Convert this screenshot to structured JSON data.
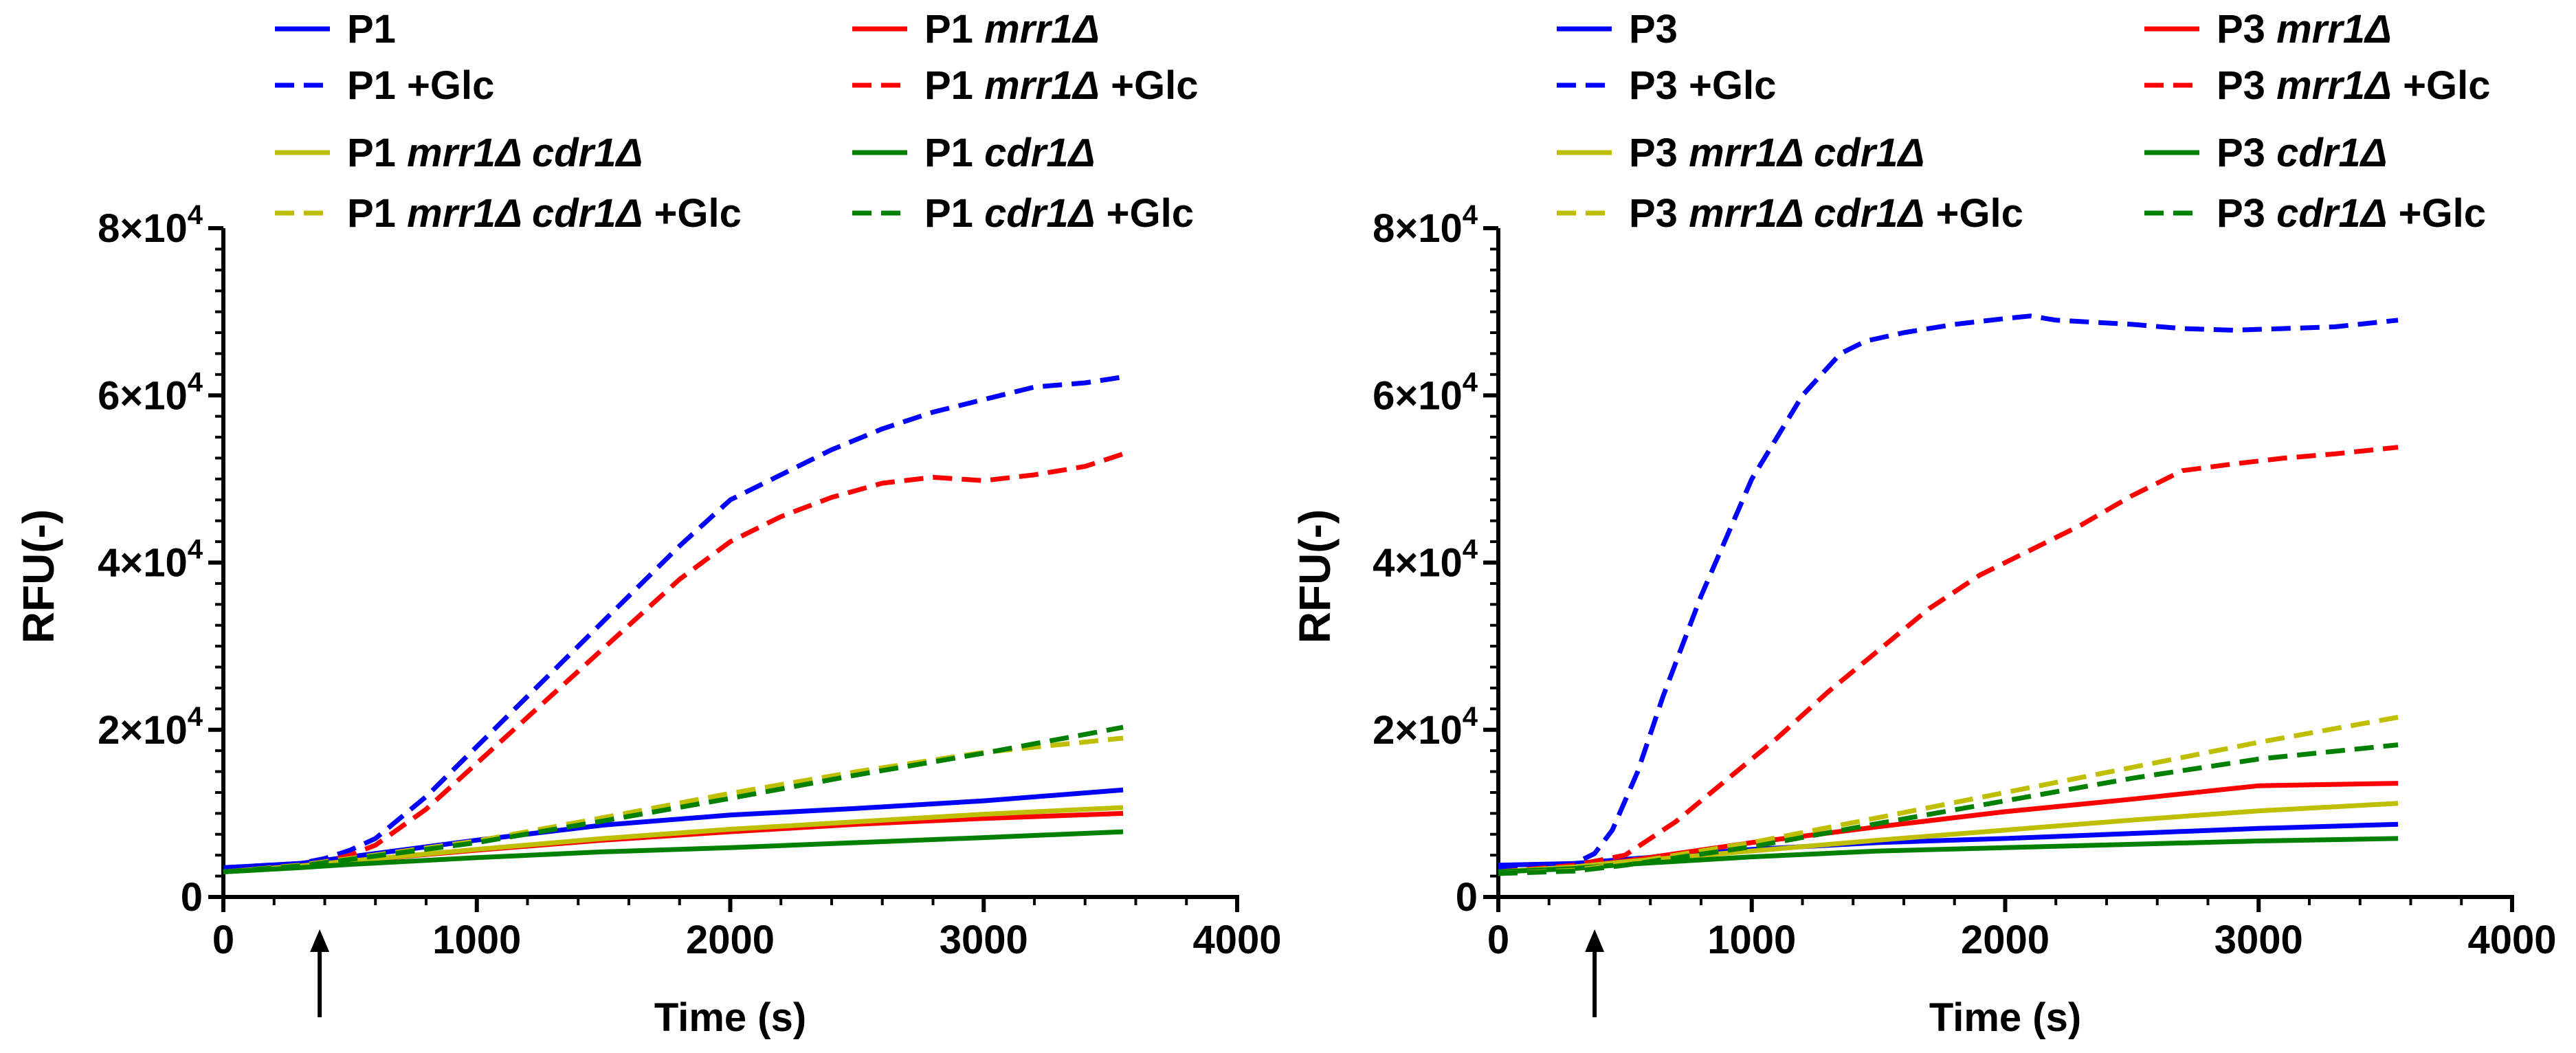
{
  "chart_data": [
    {
      "type": "line",
      "xlabel": "Time (s)",
      "ylabel": "RFU(-)",
      "xlim": [
        0,
        4000
      ],
      "ylim": [
        0,
        80000
      ],
      "x_ticks": [
        {
          "value": 0,
          "label": "0"
        },
        {
          "value": 1000,
          "label": "1000"
        },
        {
          "value": 2000,
          "label": "2000"
        },
        {
          "value": 3000,
          "label": "3000"
        },
        {
          "value": 4000,
          "label": "4000"
        }
      ],
      "y_ticks": [
        {
          "value": 0,
          "label": "0",
          "exp": ""
        },
        {
          "value": 20000,
          "label": "2×10",
          "exp": "4"
        },
        {
          "value": 40000,
          "label": "4×10",
          "exp": "4"
        },
        {
          "value": 60000,
          "label": "6×10",
          "exp": "4"
        },
        {
          "value": 80000,
          "label": "8×10",
          "exp": "4"
        }
      ],
      "arrow_at_x": 380,
      "legend_position": "top",
      "series": [
        {
          "name": "P1",
          "strain": "",
          "suffix": "",
          "color": "#0000ff",
          "dashed": false,
          "x": [
            0,
            300,
            500,
            1000,
            1500,
            2000,
            2500,
            3000,
            3550
          ],
          "y": [
            3500,
            4000,
            4800,
            6800,
            8600,
            9800,
            10600,
            11500,
            12800
          ]
        },
        {
          "name": "P1",
          "strain": "mrr1Δ",
          "suffix": "",
          "color": "#ff0000",
          "dashed": false,
          "x": [
            0,
            300,
            500,
            1000,
            1500,
            2000,
            2500,
            3000,
            3550
          ],
          "y": [
            3000,
            3700,
            4300,
            5600,
            6800,
            7800,
            8700,
            9400,
            10000
          ]
        },
        {
          "name": "P1 +Glc",
          "strain": "",
          "suffix": "",
          "color": "#0000ff",
          "dashed": true,
          "x": [
            0,
            300,
            400,
            500,
            600,
            800,
            1000,
            1200,
            1400,
            1600,
            1800,
            2000,
            2200,
            2400,
            2600,
            2800,
            3000,
            3200,
            3400,
            3550
          ],
          "y": [
            3500,
            4000,
            4600,
            5600,
            7000,
            12000,
            18000,
            24000,
            30000,
            36000,
            42000,
            47500,
            50500,
            53500,
            56000,
            58000,
            59500,
            61000,
            61500,
            62200
          ]
        },
        {
          "name": "P1",
          "strain": "mrr1Δ",
          "suffix": "+Glc",
          "color": "#ff0000",
          "dashed": true,
          "x": [
            0,
            300,
            400,
            500,
            600,
            800,
            1000,
            1200,
            1400,
            1600,
            1800,
            2000,
            2200,
            2400,
            2600,
            2800,
            3000,
            3200,
            3400,
            3550
          ],
          "y": [
            3000,
            3800,
            4200,
            5000,
            6200,
            10500,
            16000,
            21500,
            27000,
            32500,
            38000,
            42500,
            45500,
            47800,
            49500,
            50200,
            49800,
            50500,
            51500,
            53000
          ]
        },
        {
          "name": "P1",
          "strain": "mrr1Δ cdr1Δ",
          "suffix": "",
          "color": "#bfbf00",
          "dashed": false,
          "x": [
            0,
            300,
            500,
            1000,
            1500,
            2000,
            2500,
            3000,
            3550
          ],
          "y": [
            3000,
            3700,
            4300,
            5700,
            7000,
            8100,
            9000,
            9900,
            10700
          ]
        },
        {
          "name": "P1",
          "strain": "cdr1Δ",
          "suffix": "",
          "color": "#008000",
          "dashed": false,
          "x": [
            0,
            300,
            500,
            1000,
            1500,
            2000,
            2500,
            3000,
            3550
          ],
          "y": [
            3000,
            3500,
            3900,
            4700,
            5400,
            5900,
            6500,
            7100,
            7800
          ]
        },
        {
          "name": "P1",
          "strain": "mrr1Δ cdr1Δ",
          "suffix": "+Glc",
          "color": "#bfbf00",
          "dashed": true,
          "x": [
            0,
            300,
            500,
            1000,
            1500,
            2000,
            2500,
            3000,
            3550
          ],
          "y": [
            3000,
            3800,
            4600,
            6700,
            9500,
            12400,
            15000,
            17300,
            19000
          ]
        },
        {
          "name": "P1",
          "strain": "cdr1Δ",
          "suffix": "+Glc",
          "color": "#008000",
          "dashed": true,
          "x": [
            0,
            300,
            500,
            1000,
            1500,
            2000,
            2500,
            3000,
            3550
          ],
          "y": [
            3000,
            3700,
            4500,
            6500,
            9100,
            11800,
            14600,
            17200,
            20300
          ]
        }
      ]
    },
    {
      "type": "line",
      "xlabel": "Time (s)",
      "ylabel": "RFU(-)",
      "xlim": [
        0,
        4000
      ],
      "ylim": [
        0,
        80000
      ],
      "x_ticks": [
        {
          "value": 0,
          "label": "0"
        },
        {
          "value": 1000,
          "label": "1000"
        },
        {
          "value": 2000,
          "label": "2000"
        },
        {
          "value": 3000,
          "label": "3000"
        },
        {
          "value": 4000,
          "label": "4000"
        }
      ],
      "y_ticks": [
        {
          "value": 0,
          "label": "0",
          "exp": ""
        },
        {
          "value": 20000,
          "label": "2×10",
          "exp": "4"
        },
        {
          "value": 40000,
          "label": "4×10",
          "exp": "4"
        },
        {
          "value": 60000,
          "label": "6×10",
          "exp": "4"
        },
        {
          "value": 80000,
          "label": "8×10",
          "exp": "4"
        }
      ],
      "arrow_at_x": 380,
      "legend_position": "top",
      "series": [
        {
          "name": "P3",
          "strain": "",
          "suffix": "",
          "color": "#0000ff",
          "dashed": false,
          "x": [
            0,
            300,
            500,
            1000,
            1500,
            2000,
            2500,
            3000,
            3550
          ],
          "y": [
            3800,
            4000,
            4500,
            5700,
            6500,
            7000,
            7600,
            8200,
            8700
          ]
        },
        {
          "name": "P3",
          "strain": "mrr1Δ",
          "suffix": "",
          "color": "#ff0000",
          "dashed": false,
          "x": [
            0,
            300,
            500,
            1000,
            1500,
            2000,
            2500,
            3000,
            3550
          ],
          "y": [
            3000,
            3600,
            4300,
            6500,
            8400,
            10200,
            11700,
            13300,
            13600
          ]
        },
        {
          "name": "P3 +Glc",
          "strain": "",
          "suffix": "",
          "color": "#0000ff",
          "dashed": true,
          "x": [
            0,
            300,
            380,
            450,
            550,
            650,
            800,
            1000,
            1200,
            1350,
            1450,
            1600,
            1800,
            2000,
            2100,
            2200,
            2500,
            2700,
            2900,
            3100,
            3300,
            3550
          ],
          "y": [
            3500,
            4000,
            5200,
            8000,
            15000,
            24000,
            36000,
            50000,
            60000,
            65000,
            66500,
            67500,
            68500,
            69200,
            69500,
            69000,
            68500,
            68000,
            67800,
            68000,
            68200,
            69000
          ]
        },
        {
          "name": "P3",
          "strain": "mrr1Δ",
          "suffix": "+Glc",
          "color": "#ff0000",
          "dashed": true,
          "x": [
            0,
            300,
            500,
            700,
            900,
            1100,
            1300,
            1500,
            1700,
            1900,
            2100,
            2300,
            2500,
            2700,
            2900,
            3100,
            3300,
            3550
          ],
          "y": [
            3000,
            3800,
            5000,
            9000,
            14000,
            19000,
            24500,
            29500,
            34500,
            38500,
            41500,
            44500,
            48000,
            51000,
            51800,
            52500,
            53000,
            53800
          ]
        },
        {
          "name": "P3",
          "strain": "mrr1Δ cdr1Δ",
          "suffix": "",
          "color": "#bfbf00",
          "dashed": false,
          "x": [
            0,
            300,
            500,
            1000,
            1500,
            2000,
            2500,
            3000,
            3550
          ],
          "y": [
            3000,
            3600,
            4200,
            5500,
            6800,
            8000,
            9200,
            10300,
            11200
          ]
        },
        {
          "name": "P3",
          "strain": "cdr1Δ",
          "suffix": "",
          "color": "#008000",
          "dashed": false,
          "x": [
            0,
            300,
            500,
            1000,
            1500,
            2000,
            2500,
            3000,
            3550
          ],
          "y": [
            3000,
            3400,
            3900,
            4800,
            5500,
            5900,
            6300,
            6700,
            7000
          ]
        },
        {
          "name": "P3",
          "strain": "mrr1Δ cdr1Δ",
          "suffix": "+Glc",
          "color": "#bfbf00",
          "dashed": true,
          "x": [
            0,
            300,
            500,
            1000,
            1500,
            2000,
            2500,
            3000,
            3550
          ],
          "y": [
            2800,
            3200,
            4000,
            6500,
            9500,
            12500,
            15500,
            18500,
            21500
          ]
        },
        {
          "name": "P3",
          "strain": "cdr1Δ",
          "suffix": "+Glc",
          "color": "#008000",
          "dashed": true,
          "x": [
            0,
            300,
            500,
            1000,
            1500,
            2000,
            2500,
            3000,
            3550
          ],
          "y": [
            2800,
            3100,
            3800,
            6000,
            8800,
            11500,
            14200,
            16500,
            18200
          ]
        }
      ]
    }
  ]
}
